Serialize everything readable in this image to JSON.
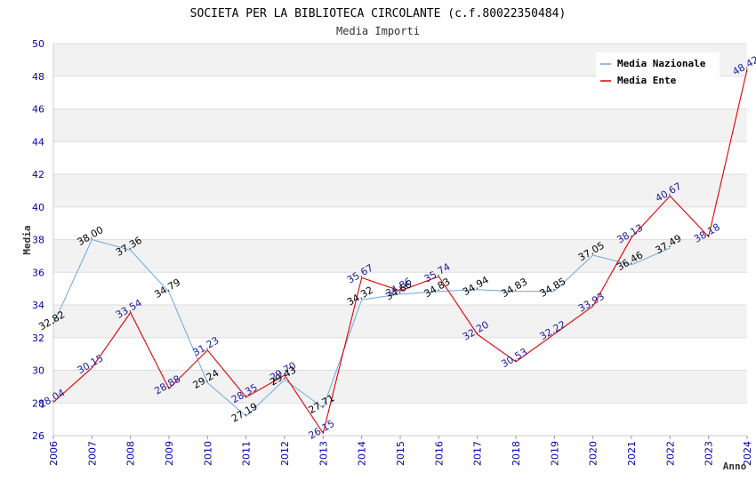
{
  "chart_data": {
    "type": "line",
    "title": "SOCIETA PER LA BIBLIOTECA CIRCOLANTE (c.f.80022350484)",
    "subtitle": "Media Importi",
    "xlabel": "Anno",
    "ylabel": "Media",
    "ylim": [
      26,
      50
    ],
    "yticks": [
      26,
      28,
      30,
      32,
      34,
      36,
      38,
      40,
      42,
      44,
      46,
      48,
      50
    ],
    "grid": true,
    "legend_position": "top-right",
    "categories": [
      "2006",
      "2007",
      "2008",
      "2009",
      "2010",
      "2011",
      "2012",
      "2013",
      "2014",
      "2015",
      "2016",
      "2017",
      "2018",
      "2019",
      "2020",
      "2021",
      "2022",
      "2023",
      "2024"
    ],
    "series": [
      {
        "name": "Media Nazionale",
        "color": "#6aa8e0",
        "label_color": "#000000",
        "values": [
          32.82,
          38.0,
          37.36,
          34.79,
          29.24,
          27.19,
          29.43,
          27.71,
          34.32,
          34.66,
          34.83,
          34.94,
          34.83,
          34.85,
          37.05,
          36.46,
          37.49,
          null,
          null
        ],
        "labels": [
          "32.82",
          "38.00",
          "37.36",
          "34.79",
          "29.24",
          "27.19",
          "29.43",
          "27.71",
          "34.32",
          "34.66",
          "34.83",
          "34.94",
          "34.83",
          "34.85",
          "37.05",
          "36.46",
          "37.49",
          null,
          null
        ]
      },
      {
        "name": "Media Ente",
        "color": "#dd0000",
        "label_color": "#1a1aa0",
        "values": [
          28.04,
          30.15,
          33.54,
          28.88,
          31.23,
          28.35,
          29.7,
          26.15,
          35.67,
          34.86,
          35.74,
          32.2,
          30.53,
          32.22,
          33.93,
          38.13,
          40.67,
          38.18,
          48.42
        ],
        "labels": [
          "28.04",
          "30.15",
          "33.54",
          "28.88",
          "31.23",
          "28.35",
          "29.70",
          "26.15",
          "35.67",
          "34.86",
          "35.74",
          "32.20",
          "30.53",
          "32.22",
          "33.93",
          "38.13",
          "40.67",
          "38.18",
          "48.42"
        ]
      }
    ]
  }
}
